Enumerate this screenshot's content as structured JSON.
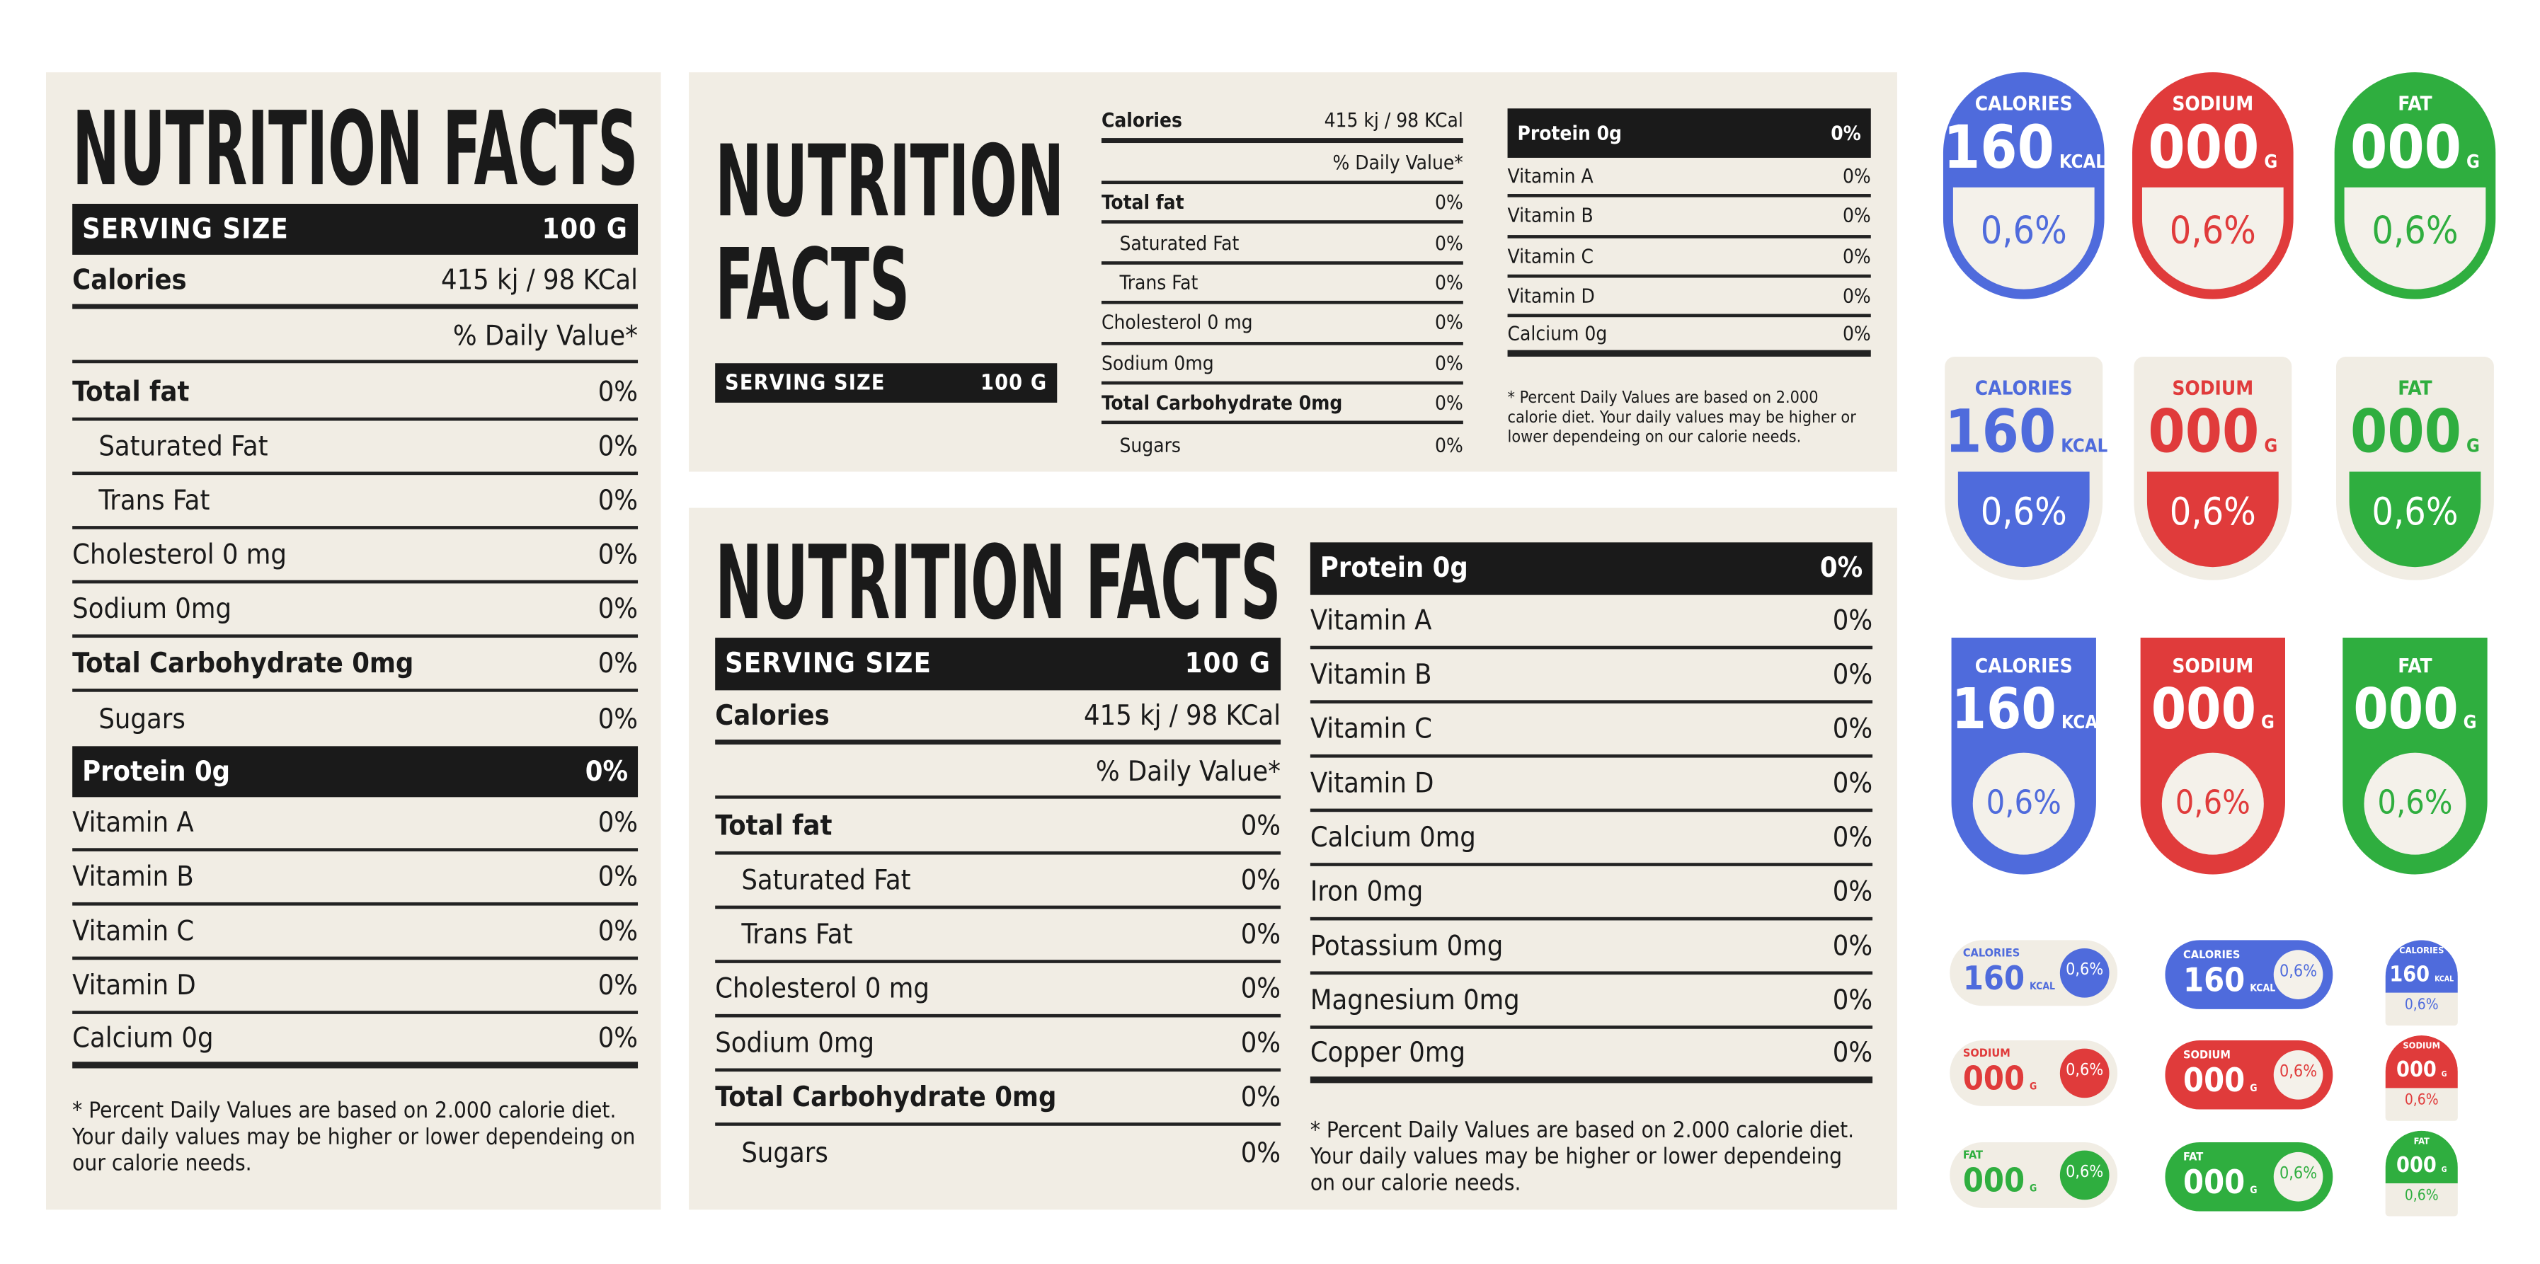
{
  "labels": [
    {
      "title": "NUTRITION FACTS",
      "serving_label": "SERVING SIZE",
      "serving_value": "100 G",
      "calories_label": "Calories",
      "calories_value": "415 kj / 98 KCal",
      "daily_value": "% Daily Value*",
      "nutrients": [
        {
          "name": "Total fat",
          "value": "0%"
        },
        {
          "name": "Saturated Fat",
          "value": "0%"
        },
        {
          "name": "Trans Fat",
          "value": "0%"
        },
        {
          "name": "Cholesterol 0 mg",
          "value": "0%"
        },
        {
          "name": "Sodium 0mg",
          "value": "0%"
        },
        {
          "name": "Total Carbohydrate 0mg",
          "value": "0%"
        },
        {
          "name": "Sugars",
          "value": "0%"
        }
      ],
      "vitamins": [
        {
          "name": "Protein 0g",
          "value": "0%"
        },
        {
          "name": "Vitamin A",
          "value": "0%"
        },
        {
          "name": "Vitamin B",
          "value": "0%"
        },
        {
          "name": "Vitamin C",
          "value": "0%"
        },
        {
          "name": "Vitamin D",
          "value": "0%"
        },
        {
          "name": "Calcium 0g",
          "value": "0%"
        }
      ],
      "footnote": "* Percent Daily Values are based on 2.000 calorie diet. Your daily values may be higher or lower dependeing on our calorie needs."
    },
    {
      "title": "NUTRITION FACTS",
      "serving_label": "SERVING SIZE",
      "serving_value": "100 G",
      "calories_label": "Calories",
      "calories_value": "415 kj / 98 KCal",
      "daily_value": "% Daily Value*",
      "nutrients": [
        {
          "name": "Total fat",
          "value": "0%"
        },
        {
          "name": "Saturated Fat",
          "value": "0%"
        },
        {
          "name": "Trans Fat",
          "value": "0%"
        },
        {
          "name": "Cholesterol 0 mg",
          "value": "0%"
        },
        {
          "name": "Sodium 0mg",
          "value": "0%"
        },
        {
          "name": "Total Carbohydrate 0mg",
          "value": "0%"
        },
        {
          "name": "Sugars",
          "value": "0%"
        }
      ],
      "vitamins": [
        {
          "name": "Protein 0g",
          "value": "0%"
        },
        {
          "name": "Vitamin A",
          "value": "0%"
        },
        {
          "name": "Vitamin B",
          "value": "0%"
        },
        {
          "name": "Vitamin C",
          "value": "0%"
        },
        {
          "name": "Vitamin D",
          "value": "0%"
        },
        {
          "name": "Calcium 0g",
          "value": "0%"
        }
      ],
      "footnote": "* Percent Daily Values are based on 2.000 calorie diet. Your daily values may be higher or lower dependeing on our calorie needs."
    },
    {
      "title": "NUTRITION FACTS",
      "serving_label": "SERVING SIZE",
      "serving_value": "100 G",
      "calories_label": "Calories",
      "calories_value": "415 kj / 98 KCal",
      "daily_value": "% Daily Value*",
      "nutrients": [
        {
          "name": "Total fat",
          "value": "0%"
        },
        {
          "name": "Saturated Fat",
          "value": "0%"
        },
        {
          "name": "Trans Fat",
          "value": "0%"
        },
        {
          "name": "Cholesterol 0 mg",
          "value": "0%"
        },
        {
          "name": "Sodium 0mg",
          "value": "0%"
        },
        {
          "name": "Total Carbohydrate 0mg",
          "value": "0%"
        },
        {
          "name": "Sugars",
          "value": "0%"
        }
      ],
      "vitamins": [
        {
          "name": "Protein 0g",
          "value": "0%"
        },
        {
          "name": "Vitamin A",
          "value": "0%"
        },
        {
          "name": "Vitamin B",
          "value": "0%"
        },
        {
          "name": "Vitamin C",
          "value": "0%"
        },
        {
          "name": "Vitamin D",
          "value": "0%"
        },
        {
          "name": "Calcium 0mg",
          "value": "0%"
        },
        {
          "name": "Iron 0mg",
          "value": "0%"
        },
        {
          "name": "Potassium 0mg",
          "value": "0%"
        },
        {
          "name": "Magnesium 0mg",
          "value": "0%"
        },
        {
          "name": "Copper 0mg",
          "value": "0%"
        }
      ],
      "footnote": "* Percent Daily Values are based on 2.000 calorie diet. Your daily values may be higher or lower dependeing on our calorie needs."
    }
  ],
  "badges": [
    [
      {
        "label": "CALORIES",
        "amount": "160",
        "unit": "KCAL",
        "percent": "0,6%"
      },
      {
        "label": "SODIUM",
        "amount": "000",
        "unit": "G",
        "percent": "0,6%"
      },
      {
        "label": "FAT",
        "amount": "000",
        "unit": "G",
        "percent": "0,6%"
      }
    ],
    [
      {
        "label": "CALORIES",
        "amount": "160",
        "unit": "KCAL",
        "percent": "0,6%"
      },
      {
        "label": "SODIUM",
        "amount": "000",
        "unit": "G",
        "percent": "0,6%"
      },
      {
        "label": "FAT",
        "amount": "000",
        "unit": "G",
        "percent": "0,6%"
      }
    ],
    [
      {
        "label": "CALORIES",
        "amount": "160",
        "unit": "KCAL",
        "percent": "0,6%"
      },
      {
        "label": "SODIUM",
        "amount": "000",
        "unit": "G",
        "percent": "0,6%"
      },
      {
        "label": "FAT",
        "amount": "000",
        "unit": "G",
        "percent": "0,6%"
      }
    ],
    [
      {
        "label": "CALORIES",
        "amount": "160",
        "unit": "KCAL",
        "percent": "0,6%"
      },
      {
        "label": "SODIUM",
        "amount": "000",
        "unit": "G",
        "percent": "0,6%"
      },
      {
        "label": "FAT",
        "amount": "000",
        "unit": "G",
        "percent": "0,6%"
      }
    ],
    [
      {
        "label": "CALORIES",
        "amount": "160",
        "unit": "KCAL",
        "percent": "0,6%"
      },
      {
        "label": "SODIUM",
        "amount": "000",
        "unit": "G",
        "percent": "0,6%"
      },
      {
        "label": "FAT",
        "amount": "000",
        "unit": "G",
        "percent": "0,6%"
      }
    ],
    [
      {
        "label": "CALORIES",
        "amount": "160",
        "unit": "KCAL",
        "percent": "0,6%"
      },
      {
        "label": "SODIUM",
        "amount": "000",
        "unit": "G",
        "percent": "0,6%"
      },
      {
        "label": "FAT",
        "amount": "000",
        "unit": "G",
        "percent": "0,6%"
      }
    ]
  ]
}
